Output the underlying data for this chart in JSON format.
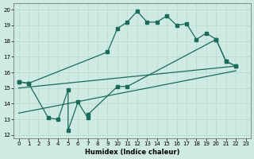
{
  "xlabel": "Humidex (Indice chaleur)",
  "xlim": [
    -0.5,
    23.5
  ],
  "ylim": [
    11.8,
    20.4
  ],
  "xticks": [
    0,
    1,
    2,
    3,
    4,
    5,
    6,
    7,
    8,
    9,
    10,
    11,
    12,
    13,
    14,
    15,
    16,
    17,
    18,
    19,
    20,
    21,
    22,
    23
  ],
  "yticks": [
    12,
    13,
    14,
    15,
    16,
    17,
    18,
    19,
    20
  ],
  "background_color": "#ceeae2",
  "line_color": "#1a6b5a",
  "grid_color": "#b8ddd5",
  "line1_x": [
    0,
    1,
    9,
    10,
    11,
    12,
    13,
    14,
    15,
    16,
    17,
    18,
    19,
    20,
    21,
    22
  ],
  "line1_y": [
    15.4,
    15.3,
    17.3,
    18.8,
    19.2,
    19.9,
    19.2,
    19.2,
    19.6,
    19.0,
    19.1,
    18.1,
    18.5,
    18.1,
    16.7,
    16.4
  ],
  "line2_x": [
    0,
    1,
    3,
    4,
    5,
    5,
    6,
    7,
    7,
    10,
    11,
    20,
    21,
    22
  ],
  "line2_y": [
    15.4,
    15.3,
    13.1,
    13.0,
    14.9,
    12.3,
    14.1,
    13.1,
    13.3,
    15.1,
    15.1,
    18.1,
    16.7,
    16.4
  ],
  "line3_x": [
    0,
    22
  ],
  "line3_y": [
    15.0,
    16.4
  ],
  "line4_x": [
    0,
    22
  ],
  "line4_y": [
    13.4,
    16.1
  ]
}
